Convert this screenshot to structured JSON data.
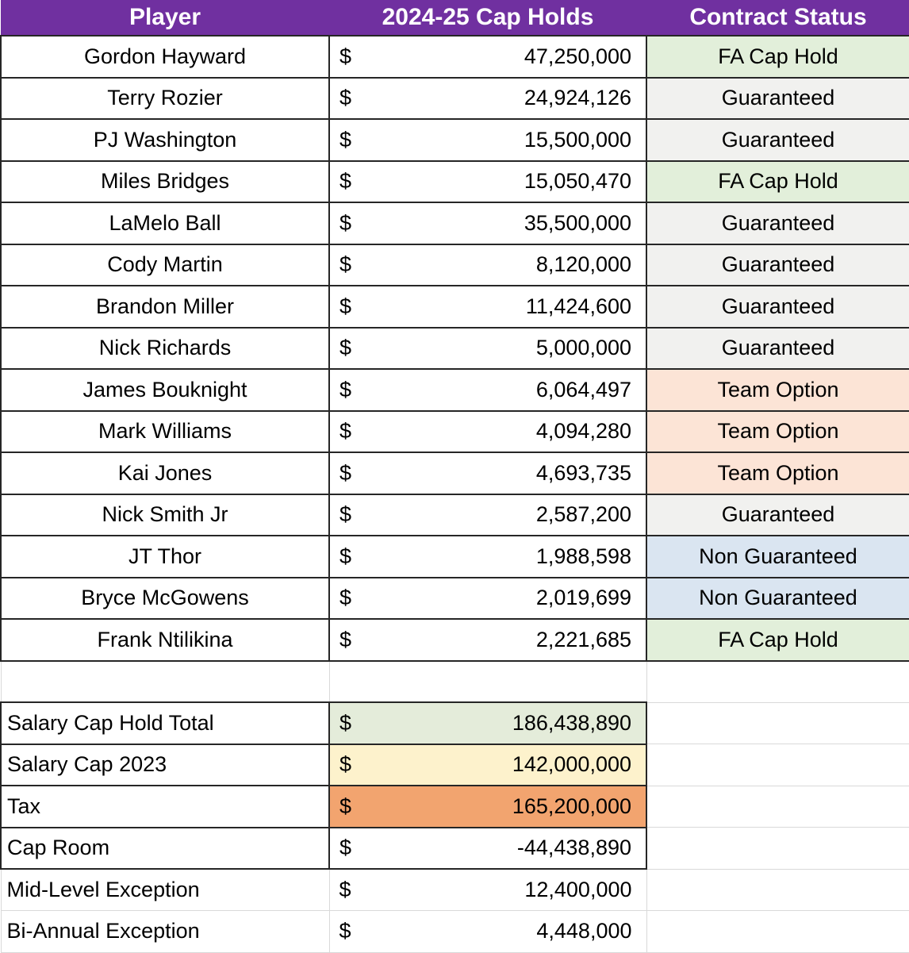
{
  "columns": {
    "player": "Player",
    "cap_holds": "2024-25 Cap Holds",
    "status": "Contract Status"
  },
  "currency": "$",
  "players": [
    {
      "name": "Gordon Hayward",
      "amount": "47,250,000",
      "status": "FA Cap Hold"
    },
    {
      "name": "Terry Rozier",
      "amount": "24,924,126",
      "status": "Guaranteed"
    },
    {
      "name": "PJ Washington",
      "amount": "15,500,000",
      "status": "Guaranteed"
    },
    {
      "name": "Miles Bridges",
      "amount": "15,050,470",
      "status": "FA Cap Hold"
    },
    {
      "name": "LaMelo Ball",
      "amount": "35,500,000",
      "status": "Guaranteed"
    },
    {
      "name": "Cody Martin",
      "amount": "8,120,000",
      "status": "Guaranteed"
    },
    {
      "name": "Brandon Miller",
      "amount": "11,424,600",
      "status": "Guaranteed"
    },
    {
      "name": "Nick Richards",
      "amount": "5,000,000",
      "status": "Guaranteed"
    },
    {
      "name": "James Bouknight",
      "amount": "6,064,497",
      "status": "Team Option"
    },
    {
      "name": "Mark Williams",
      "amount": "4,094,280",
      "status": "Team Option"
    },
    {
      "name": "Kai Jones",
      "amount": "4,693,735",
      "status": "Team Option"
    },
    {
      "name": "Nick Smith Jr",
      "amount": "2,587,200",
      "status": "Guaranteed"
    },
    {
      "name": "JT Thor",
      "amount": "1,988,598",
      "status": "Non Guaranteed"
    },
    {
      "name": "Bryce McGowens",
      "amount": "2,019,699",
      "status": "Non Guaranteed"
    },
    {
      "name": "Frank Ntilikina",
      "amount": "2,221,685",
      "status": "FA Cap Hold"
    }
  ],
  "summary": [
    {
      "label": "Salary Cap Hold Total",
      "amount": "186,438,890"
    },
    {
      "label": "Salary Cap 2023",
      "amount": "142,000,000"
    },
    {
      "label": "Tax",
      "amount": "165,200,000"
    },
    {
      "label": "Cap Room",
      "amount": "-44,438,890"
    },
    {
      "label": "Mid-Level Exception",
      "amount": "12,400,000"
    },
    {
      "label": "Bi-Annual Exception",
      "amount": "4,448,000"
    }
  ],
  "colors": {
    "header_bg": "#7030a0",
    "header_text": "#ffffff",
    "status_fa_cap_hold": "#e2efda",
    "status_guaranteed": "#f1f1ef",
    "status_team_option": "#fce4d6",
    "status_non_guaranteed": "#dae5f1",
    "summary_total_bg": "#e4ecda",
    "summary_cap_bg": "#fdf2cc",
    "summary_tax_bg": "#f2a46f",
    "grid_dark": "#262626",
    "grid_light": "#d9d9d9"
  },
  "chart_data": {
    "type": "table",
    "title": "2024-25 Cap Holds",
    "columns": [
      "Player",
      "2024-25 Cap Holds",
      "Contract Status"
    ],
    "rows": [
      [
        "Gordon Hayward",
        47250000,
        "FA Cap Hold"
      ],
      [
        "Terry Rozier",
        24924126,
        "Guaranteed"
      ],
      [
        "PJ Washington",
        15500000,
        "Guaranteed"
      ],
      [
        "Miles Bridges",
        15050470,
        "FA Cap Hold"
      ],
      [
        "LaMelo Ball",
        35500000,
        "Guaranteed"
      ],
      [
        "Cody Martin",
        8120000,
        "Guaranteed"
      ],
      [
        "Brandon Miller",
        11424600,
        "Guaranteed"
      ],
      [
        "Nick Richards",
        5000000,
        "Guaranteed"
      ],
      [
        "James Bouknight",
        6064497,
        "Team Option"
      ],
      [
        "Mark Williams",
        4094280,
        "Team Option"
      ],
      [
        "Kai Jones",
        4693735,
        "Team Option"
      ],
      [
        "Nick Smith Jr",
        2587200,
        "Guaranteed"
      ],
      [
        "JT Thor",
        1988598,
        "Non Guaranteed"
      ],
      [
        "Bryce McGowens",
        2019699,
        "Non Guaranteed"
      ],
      [
        "Frank Ntilikina",
        2221685,
        "FA Cap Hold"
      ]
    ],
    "summary_rows": [
      [
        "Salary Cap Hold Total",
        186438890
      ],
      [
        "Salary Cap 2023",
        142000000
      ],
      [
        "Tax",
        165200000
      ],
      [
        "Cap Room",
        -44438890
      ],
      [
        "Mid-Level Exception",
        12400000
      ],
      [
        "Bi-Annual Exception",
        4448000
      ]
    ]
  }
}
